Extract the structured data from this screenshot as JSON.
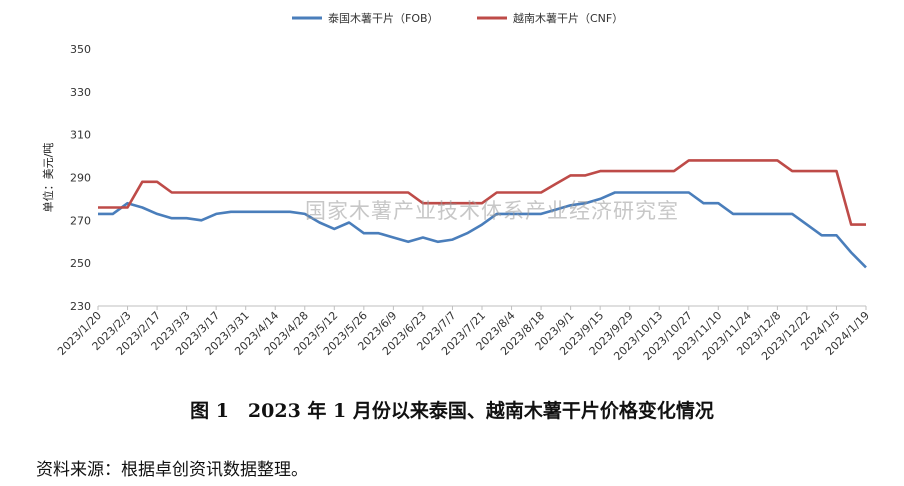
{
  "chart_data": {
    "type": "line",
    "ylabel": "单位：美元/吨",
    "ylim": [
      230,
      350
    ],
    "yticks": [
      230,
      250,
      270,
      290,
      310,
      330,
      350
    ],
    "grid": false,
    "legend_position": "top-center",
    "watermark": "国家木薯产业技术体系产业经济研究室",
    "x": [
      "2023/1/20",
      "2023/1/27",
      "2023/2/3",
      "2023/2/10",
      "2023/2/17",
      "2023/2/24",
      "2023/3/3",
      "2023/3/10",
      "2023/3/17",
      "2023/3/24",
      "2023/3/31",
      "2023/4/7",
      "2023/4/14",
      "2023/4/21",
      "2023/4/28",
      "2023/5/5",
      "2023/5/12",
      "2023/5/19",
      "2023/5/26",
      "2023/6/2",
      "2023/6/9",
      "2023/6/16",
      "2023/6/23",
      "2023/6/30",
      "2023/7/7",
      "2023/7/14",
      "2023/7/21",
      "2023/7/28",
      "2023/8/4",
      "2023/8/11",
      "2023/8/18",
      "2023/8/25",
      "2023/9/1",
      "2023/9/8",
      "2023/9/15",
      "2023/9/22",
      "2023/9/29",
      "2023/10/6",
      "2023/10/13",
      "2023/10/20",
      "2023/10/27",
      "2023/11/3",
      "2023/11/10",
      "2023/11/17",
      "2023/11/24",
      "2023/12/1",
      "2023/12/8",
      "2023/12/15",
      "2023/12/22",
      "2023/12/29",
      "2024/1/5",
      "2024/1/12",
      "2024/1/19"
    ],
    "tick_labels": [
      "2023/1/20",
      "2023/2/3",
      "2023/2/17",
      "2023/3/3",
      "2023/3/17",
      "2023/3/31",
      "2023/4/14",
      "2023/4/28",
      "2023/5/12",
      "2023/5/26",
      "2023/6/9",
      "2023/6/23",
      "2023/7/7",
      "2023/7/21",
      "2023/8/4",
      "2023/8/18",
      "2023/9/1",
      "2023/9/15",
      "2023/9/29",
      "2023/10/13",
      "2023/10/27",
      "2023/11/10",
      "2023/11/24",
      "2023/12/8",
      "2023/12/22",
      "2024/1/5",
      "2024/1/19"
    ],
    "series": [
      {
        "name": "泰国木薯干片（FOB）",
        "color": "#4a7ebb",
        "values": [
          273,
          273,
          278,
          276,
          273,
          271,
          271,
          270,
          273,
          274,
          274,
          274,
          274,
          274,
          273,
          269,
          266,
          269,
          264,
          264,
          262,
          260,
          262,
          260,
          261,
          264,
          268,
          273,
          273,
          273,
          273,
          275,
          277,
          278,
          280,
          283,
          283,
          283,
          283,
          283,
          283,
          278,
          278,
          273,
          273,
          273,
          273,
          273,
          268,
          263,
          263,
          255,
          248
        ]
      },
      {
        "name": "越南木薯干片（CNF）",
        "color": "#be4b48",
        "values": [
          276,
          276,
          276,
          288,
          288,
          283,
          283,
          283,
          283,
          283,
          283,
          283,
          283,
          283,
          283,
          283,
          283,
          283,
          283,
          283,
          283,
          283,
          278,
          278,
          278,
          278,
          278,
          283,
          283,
          283,
          283,
          287,
          291,
          291,
          293,
          293,
          293,
          293,
          293,
          293,
          298,
          298,
          298,
          298,
          298,
          298,
          298,
          293,
          293,
          293,
          293,
          268,
          268
        ]
      }
    ]
  },
  "caption": "图 1　2023 年 1 月份以来泰国、越南木薯干片价格变化情况",
  "source": "资料来源：根据卓创资讯数据整理。"
}
